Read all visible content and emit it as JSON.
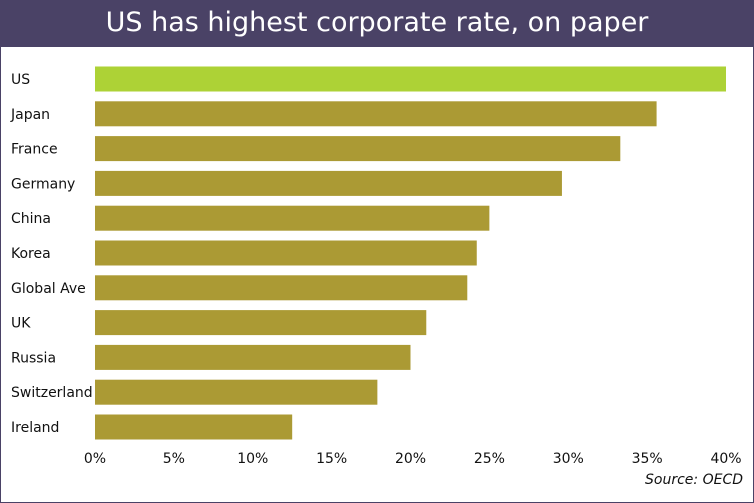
{
  "title": "US has highest corporate rate, on paper",
  "source": "Source: OECD",
  "colors": {
    "header": "#4a4266",
    "highlight": "#add236",
    "bar": "#ab9a34"
  },
  "chart_data": {
    "type": "bar",
    "orientation": "horizontal",
    "title": "US has highest corporate rate, on paper",
    "categories": [
      "US",
      "Japan",
      "France",
      "Germany",
      "China",
      "Korea",
      "Global Ave",
      "UK",
      "Russia",
      "Switzerland",
      "Ireland"
    ],
    "values": [
      40,
      35.6,
      33.3,
      29.6,
      25,
      24.2,
      23.6,
      21,
      20,
      17.9,
      12.5
    ],
    "highlight": "US",
    "xlim": [
      0,
      40
    ],
    "xticks": [
      0,
      5,
      10,
      15,
      20,
      25,
      30,
      35,
      40
    ],
    "xtick_labels": [
      "0%",
      "5%",
      "10%",
      "15%",
      "20%",
      "25%",
      "30%",
      "35%",
      "40%"
    ],
    "grid": false,
    "legend": "none"
  }
}
